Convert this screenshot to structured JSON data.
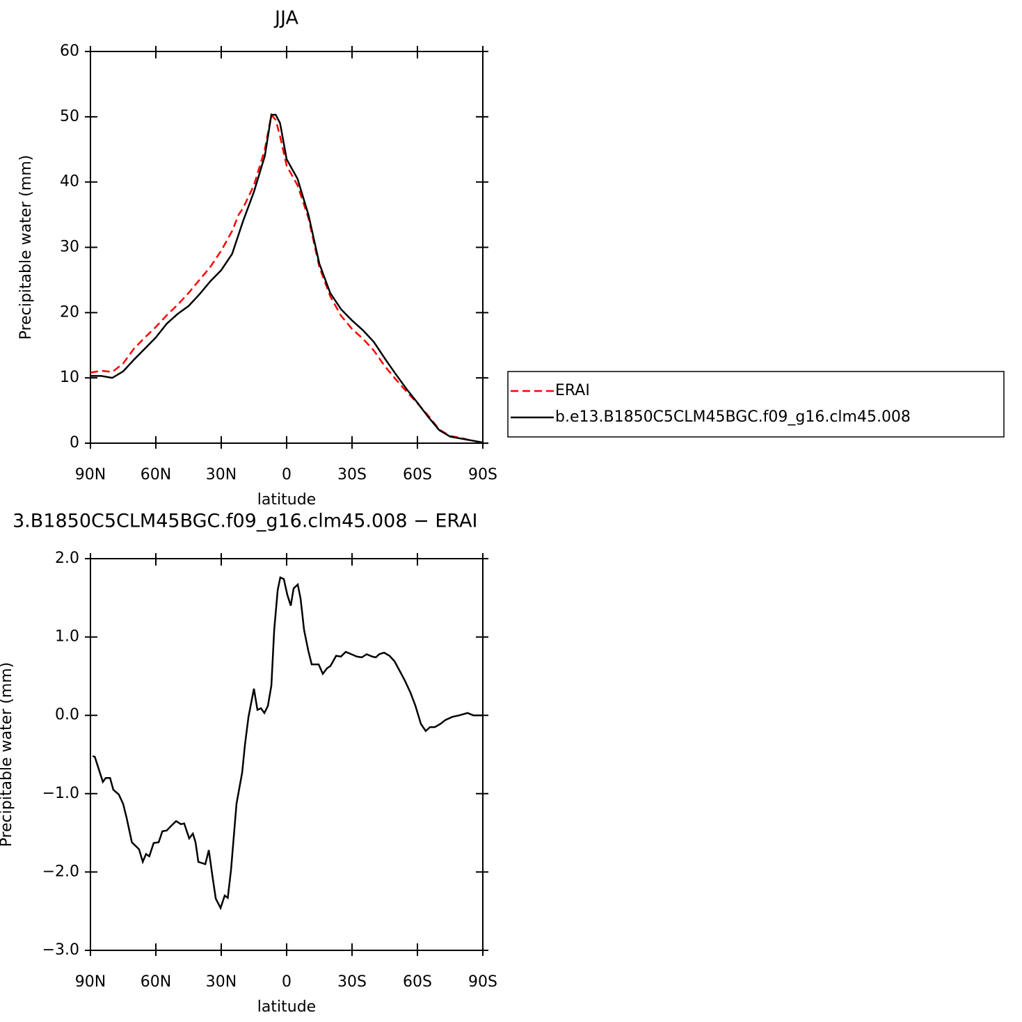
{
  "chart_data": [
    {
      "type": "line",
      "title": "JJA",
      "xlabel": "latitude",
      "ylabel": "Precipitable water (mm)",
      "x": [
        90,
        85,
        80,
        75,
        70,
        65,
        60,
        55,
        50,
        45,
        40,
        35,
        30,
        25,
        22,
        20,
        15,
        10,
        7,
        5,
        3,
        0,
        -5,
        -10,
        -15,
        -20,
        -25,
        -30,
        -35,
        -40,
        -45,
        -50,
        -55,
        -60,
        -65,
        -70,
        -75,
        -80,
        -85,
        -90
      ],
      "series": [
        {
          "name": "ERAI",
          "color": "#ff0000",
          "dash": true,
          "values": [
            10.8,
            11.1,
            10.9,
            12.2,
            14.5,
            16.2,
            17.8,
            19.6,
            21.2,
            23,
            25,
            27,
            29.5,
            32.5,
            35,
            36,
            39.5,
            45,
            50.3,
            49.5,
            47,
            42.5,
            39.5,
            34.5,
            27,
            22.5,
            19.5,
            17.5,
            16,
            14.2,
            11.8,
            9.8,
            7.9,
            6.1,
            4.2,
            2.1,
            1.1,
            0.8,
            0.4,
            0.1
          ]
        },
        {
          "name": "b.e13.B1850C5CLM45BGC.f09_g16.clm45.008",
          "color": "#000000",
          "dash": false,
          "values": [
            10.3,
            10.3,
            10,
            11,
            12.8,
            14.5,
            16.2,
            18.3,
            19.8,
            21,
            22.8,
            24.8,
            26.5,
            29,
            32,
            34,
            38.5,
            44,
            50.3,
            50.3,
            49,
            43.5,
            40.5,
            35,
            27.5,
            23,
            20.5,
            18.8,
            17.3,
            15.5,
            13,
            10.6,
            8.3,
            6.2,
            4,
            2,
            1,
            0.7,
            0.4,
            0.1
          ]
        }
      ],
      "xlim": [
        90,
        -90
      ],
      "xticks": [
        {
          "value": 90,
          "label": "90N"
        },
        {
          "value": 60,
          "label": "60N"
        },
        {
          "value": 30,
          "label": "30N"
        },
        0,
        {
          "value": -30,
          "label": "30S"
        },
        {
          "value": -60,
          "label": "60S"
        },
        {
          "value": -90,
          "label": "90S"
        }
      ],
      "ylim": [
        0,
        60
      ],
      "yticks": [
        0,
        10,
        20,
        30,
        40,
        50,
        60
      ],
      "legend": "right"
    },
    {
      "type": "line",
      "title": "3.B1850C5CLM45BGC.f09_g16.clm45.008 − ERAI",
      "xlabel": "latitude",
      "ylabel": "Precipitable water (mm)",
      "x": [
        89,
        88,
        84.3,
        83,
        81,
        79.5,
        77,
        75,
        73.4,
        71,
        67.7,
        66,
        64.5,
        63,
        61,
        58.7,
        57,
        55,
        53.3,
        50.7,
        48.5,
        47,
        44.7,
        43,
        41.8,
        40.5,
        37.3,
        35.7,
        34,
        32.5,
        30.3,
        28.4,
        27,
        25.5,
        23,
        20.4,
        19.1,
        17.5,
        15,
        13.4,
        11.8,
        10.2,
        8.6,
        7,
        5.7,
        4.1,
        2.9,
        1.3,
        -0.3,
        -1.9,
        -3.2,
        -5.1,
        -6.4,
        -8,
        -9.9,
        -11.5,
        -14.7,
        -16.6,
        -18.5,
        -20.1,
        -22.7,
        -24.9,
        -27.1,
        -29.7,
        -32.2,
        -34.5,
        -36.7,
        -39.3,
        -40.9,
        -42.5,
        -44.7,
        -47.2,
        -49.5,
        -52,
        -54.3,
        -56.8,
        -59.1,
        -61.6,
        -63.8,
        -65.8,
        -68,
        -70.5,
        -72.8,
        -76,
        -79.2,
        -83,
        -85.6,
        -90
      ],
      "color": "#000000",
      "values": [
        -0.52,
        -0.53,
        -0.85,
        -0.8,
        -0.8,
        -0.95,
        -1.01,
        -1.13,
        -1.31,
        -1.62,
        -1.71,
        -1.87,
        -1.77,
        -1.8,
        -1.63,
        -1.62,
        -1.48,
        -1.47,
        -1.42,
        -1.35,
        -1.39,
        -1.38,
        -1.57,
        -1.51,
        -1.62,
        -1.87,
        -1.9,
        -1.72,
        -2.06,
        -2.34,
        -2.46,
        -2.3,
        -2.33,
        -1.97,
        -1.13,
        -0.73,
        -0.37,
        -0.02,
        0.34,
        0.07,
        0.09,
        0.03,
        0.12,
        0.38,
        1.09,
        1.6,
        1.76,
        1.74,
        1.54,
        1.4,
        1.62,
        1.67,
        1.49,
        1.09,
        0.83,
        0.65,
        0.65,
        0.53,
        0.6,
        0.63,
        0.76,
        0.75,
        0.81,
        0.78,
        0.75,
        0.74,
        0.78,
        0.75,
        0.74,
        0.78,
        0.8,
        0.76,
        0.69,
        0.56,
        0.44,
        0.29,
        0.12,
        -0.11,
        -0.2,
        -0.15,
        -0.15,
        -0.11,
        -0.06,
        -0.02,
        0,
        0.03,
        0,
        0
      ],
      "xlim": [
        90,
        -90
      ],
      "xticks": [
        {
          "value": 90,
          "label": "90N"
        },
        {
          "value": 60,
          "label": "60N"
        },
        {
          "value": 30,
          "label": "30N"
        },
        0,
        {
          "value": -30,
          "label": "30S"
        },
        {
          "value": -60,
          "label": "60S"
        },
        {
          "value": -90,
          "label": "90S"
        }
      ],
      "ylim": [
        -3,
        2
      ],
      "yticks": [
        {
          "value": -3,
          "label": "−3.0"
        },
        {
          "value": -2,
          "label": "−2.0"
        },
        {
          "value": -1,
          "label": "−1.0"
        },
        {
          "value": 0,
          "label": "0.0"
        },
        {
          "value": 1,
          "label": "1.0"
        },
        {
          "value": 2,
          "label": "2.0"
        }
      ]
    }
  ]
}
